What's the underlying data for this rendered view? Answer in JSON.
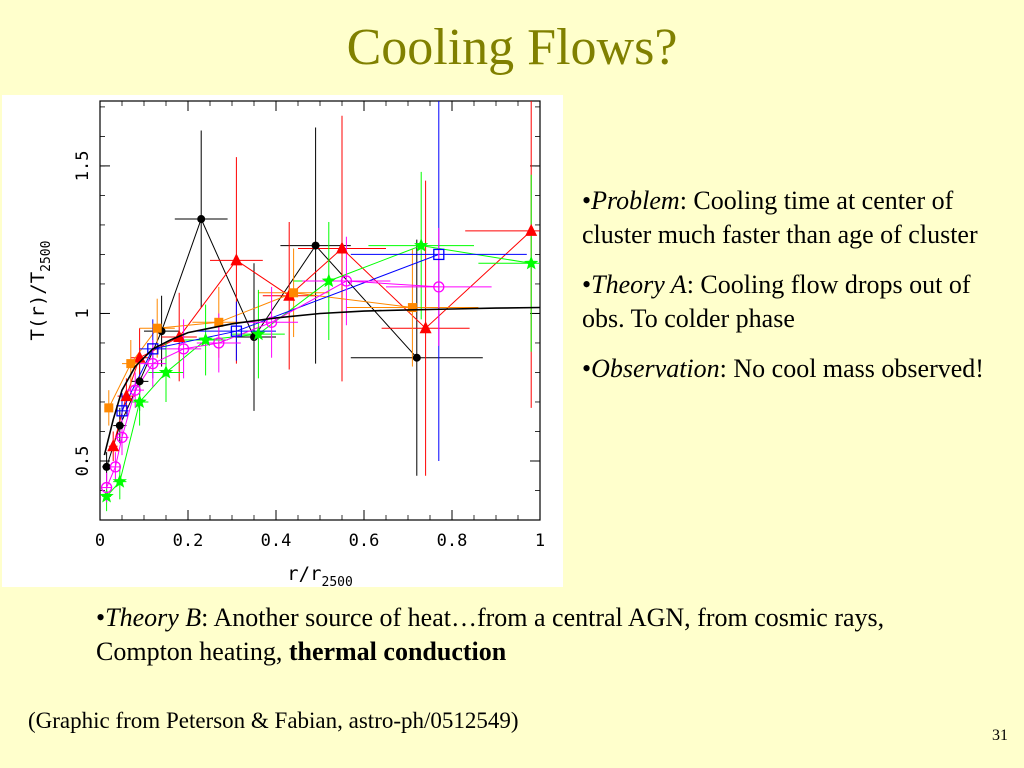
{
  "slide": {
    "title": "Cooling Flows?",
    "bullets": [
      {
        "term": "Problem",
        "text": ": Cooling time at center of cluster much faster than age of cluster"
      },
      {
        "term": "Theory A",
        "text": ": Cooling flow drops out of obs. To colder phase"
      },
      {
        "term": "Observation",
        "text": ": No cool mass observed!"
      }
    ],
    "theory_b": {
      "term": "Theory B",
      "text": ": Another source of heat…from a central AGN, from cosmic rays, Compton heating, ",
      "bold": "thermal conduction"
    },
    "credit": "(Graphic from Peterson & Fabian, astro-ph/0512549)",
    "page_number": "31",
    "bullet_char": "•"
  },
  "chart_data": {
    "type": "scatter",
    "xlabel": "r/r",
    "xlabel_sub": "2500",
    "ylabel_main": "T(r)/T",
    "ylabel_sub": "2500",
    "xlim": [
      0,
      1
    ],
    "ylim": [
      0.3,
      1.72
    ],
    "xticks": [
      {
        "value": 0,
        "label": "0"
      },
      {
        "value": 0.2,
        "label": "0.2"
      },
      {
        "value": 0.4,
        "label": "0.4"
      },
      {
        "value": 0.6,
        "label": "0.6"
      },
      {
        "value": 0.8,
        "label": "0.8"
      },
      {
        "value": 1,
        "label": "1"
      }
    ],
    "yticks": [
      {
        "value": 0.5,
        "label": "0.5"
      },
      {
        "value": 1,
        "label": "1"
      },
      {
        "value": 1.5,
        "label": "1.5"
      }
    ],
    "model_curve": {
      "color": "#000000",
      "x": [
        0.01,
        0.03,
        0.05,
        0.08,
        0.12,
        0.16,
        0.2,
        0.25,
        0.3,
        0.35,
        0.4,
        0.5,
        0.6,
        0.7,
        0.8,
        0.9,
        1.0
      ],
      "y": [
        0.52,
        0.64,
        0.74,
        0.82,
        0.88,
        0.91,
        0.935,
        0.95,
        0.965,
        0.975,
        0.985,
        1.0,
        1.008,
        1.012,
        1.015,
        1.018,
        1.02
      ]
    },
    "series": [
      {
        "color": "#000000",
        "marker": "circle",
        "points": [
          {
            "x": 0.015,
            "y": 0.48,
            "ex": 0.01,
            "ey": 0.05
          },
          {
            "x": 0.045,
            "y": 0.62,
            "ex": 0.015,
            "ey": 0.06
          },
          {
            "x": 0.09,
            "y": 0.77,
            "ex": 0.02,
            "ey": 0.1
          },
          {
            "x": 0.14,
            "y": 0.94,
            "ex": 0.04,
            "ey": 0.12
          },
          {
            "x": 0.23,
            "y": 1.32,
            "ex": 0.06,
            "ey": 0.3
          },
          {
            "x": 0.35,
            "y": 0.92,
            "ex": 0.05,
            "ey": 0.25
          },
          {
            "x": 0.49,
            "y": 1.23,
            "ex": 0.08,
            "ey": 0.4
          },
          {
            "x": 0.72,
            "y": 0.85,
            "ex": 0.15,
            "ey": 0.4
          }
        ]
      },
      {
        "color": "#ff0000",
        "marker": "triangle",
        "points": [
          {
            "x": 0.03,
            "y": 0.55,
            "ex": 0.01,
            "ey": 0.05
          },
          {
            "x": 0.06,
            "y": 0.72,
            "ex": 0.02,
            "ey": 0.06
          },
          {
            "x": 0.09,
            "y": 0.85,
            "ex": 0.02,
            "ey": 0.1
          },
          {
            "x": 0.18,
            "y": 0.92,
            "ex": 0.04,
            "ey": 0.15
          },
          {
            "x": 0.31,
            "y": 1.18,
            "ex": 0.06,
            "ey": 0.35
          },
          {
            "x": 0.43,
            "y": 1.06,
            "ex": 0.06,
            "ey": 0.25
          },
          {
            "x": 0.55,
            "y": 1.22,
            "ex": 0.1,
            "ey": 0.45
          },
          {
            "x": 0.74,
            "y": 0.95,
            "ex": 0.1,
            "ey": 0.5
          },
          {
            "x": 0.98,
            "y": 1.28,
            "ex": 0.15,
            "ey": 0.6
          }
        ]
      },
      {
        "color": "#ff8800",
        "marker": "square",
        "points": [
          {
            "x": 0.02,
            "y": 0.68,
            "ex": 0.01,
            "ey": 0.06
          },
          {
            "x": 0.07,
            "y": 0.83,
            "ex": 0.02,
            "ey": 0.08
          },
          {
            "x": 0.13,
            "y": 0.95,
            "ex": 0.04,
            "ey": 0.1
          },
          {
            "x": 0.27,
            "y": 0.97,
            "ex": 0.06,
            "ey": 0.12
          },
          {
            "x": 0.44,
            "y": 1.07,
            "ex": 0.08,
            "ey": 0.15
          },
          {
            "x": 0.71,
            "y": 1.02,
            "ex": 0.15,
            "ey": 0.2
          }
        ]
      },
      {
        "color": "#00ff00",
        "marker": "star",
        "points": [
          {
            "x": 0.015,
            "y": 0.38,
            "ex": 0.01,
            "ey": 0.05
          },
          {
            "x": 0.045,
            "y": 0.43,
            "ex": 0.015,
            "ey": 0.06
          },
          {
            "x": 0.09,
            "y": 0.7,
            "ex": 0.02,
            "ey": 0.08
          },
          {
            "x": 0.15,
            "y": 0.8,
            "ex": 0.04,
            "ey": 0.1
          },
          {
            "x": 0.24,
            "y": 0.91,
            "ex": 0.05,
            "ey": 0.12
          },
          {
            "x": 0.36,
            "y": 0.93,
            "ex": 0.06,
            "ey": 0.15
          },
          {
            "x": 0.52,
            "y": 1.11,
            "ex": 0.08,
            "ey": 0.2
          },
          {
            "x": 0.73,
            "y": 1.23,
            "ex": 0.12,
            "ey": 0.25
          },
          {
            "x": 0.98,
            "y": 1.17,
            "ex": 0.12,
            "ey": 0.3
          }
        ]
      },
      {
        "color": "#0000ff",
        "marker": "open-square",
        "points": [
          {
            "x": 0.05,
            "y": 0.67,
            "ex": 0.015,
            "ey": 0.06
          },
          {
            "x": 0.12,
            "y": 0.88,
            "ex": 0.03,
            "ey": 0.1
          },
          {
            "x": 0.31,
            "y": 0.94,
            "ex": 0.09,
            "ey": 0.1
          },
          {
            "x": 0.77,
            "y": 1.2,
            "ex": 0.2,
            "ey": 0.7
          }
        ]
      },
      {
        "color": "#ff00ff",
        "marker": "open-circle",
        "points": [
          {
            "x": 0.015,
            "y": 0.41,
            "ex": 0.01,
            "ey": 0.05
          },
          {
            "x": 0.035,
            "y": 0.48,
            "ex": 0.01,
            "ey": 0.05
          },
          {
            "x": 0.05,
            "y": 0.58,
            "ex": 0.015,
            "ey": 0.06
          },
          {
            "x": 0.08,
            "y": 0.74,
            "ex": 0.02,
            "ey": 0.06
          },
          {
            "x": 0.12,
            "y": 0.83,
            "ex": 0.03,
            "ey": 0.08
          },
          {
            "x": 0.19,
            "y": 0.88,
            "ex": 0.04,
            "ey": 0.1
          },
          {
            "x": 0.27,
            "y": 0.9,
            "ex": 0.05,
            "ey": 0.1
          },
          {
            "x": 0.39,
            "y": 0.97,
            "ex": 0.06,
            "ey": 0.12
          },
          {
            "x": 0.56,
            "y": 1.11,
            "ex": 0.1,
            "ey": 0.15
          },
          {
            "x": 0.77,
            "y": 1.09,
            "ex": 0.12,
            "ey": 0.2
          }
        ]
      }
    ]
  }
}
